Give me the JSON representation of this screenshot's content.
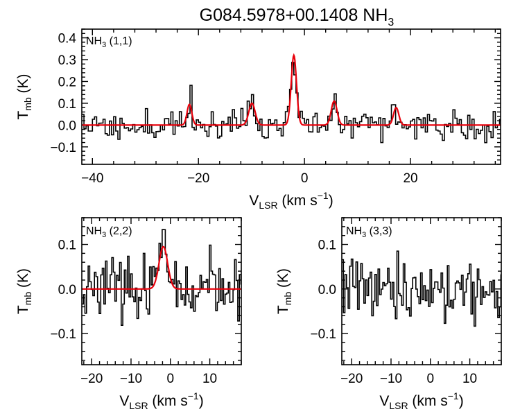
{
  "figure_title": "G084.5978+00.1408 NH",
  "figure_title_sub": "3",
  "chart_data": [
    {
      "type": "line",
      "panel": "NH3 (1,1)",
      "label_main": "NH",
      "label_sub": "3",
      "label_tail": " (1,1)",
      "xlabel_main": "V",
      "xlabel_sub": "LSR",
      "xlabel_tail": " (km s",
      "xlabel_sup": "−1",
      "xlabel_close": ")",
      "ylabel_main": "T",
      "ylabel_sub": "mb",
      "ylabel_tail": " (K)",
      "xlim": [
        -42,
        37
      ],
      "ylim": [
        -0.18,
        0.44
      ],
      "xticks": [
        -40,
        -20,
        0,
        20
      ],
      "xtick_labels": [
        "−40",
        "−20",
        "0",
        "20"
      ],
      "yticks": [
        -0.1,
        0.0,
        0.1,
        0.2,
        0.3,
        0.4
      ],
      "ytick_labels": [
        "−0.1",
        "0.0",
        "0.1",
        "0.2",
        "0.3",
        "0.4"
      ],
      "channel_width": 0.4,
      "noise_rms": 0.038,
      "seed": 11,
      "model_components": [
        {
          "center": -21.7,
          "amplitude": 0.095,
          "sigma": 0.45
        },
        {
          "center": -9.9,
          "amplitude": 0.1,
          "sigma": 0.6
        },
        {
          "center": -2.0,
          "amplitude": 0.32,
          "sigma": 0.5
        },
        {
          "center": 5.6,
          "amplitude": 0.11,
          "sigma": 0.55
        },
        {
          "center": 17.3,
          "amplitude": 0.08,
          "sigma": 0.5
        }
      ]
    },
    {
      "type": "line",
      "panel": "NH3 (2,2)",
      "label_main": "NH",
      "label_sub": "3",
      "label_tail": " (2,2)",
      "xlabel_main": "V",
      "xlabel_sub": "LSR",
      "xlabel_tail": " (km s",
      "xlabel_sup": "−1",
      "xlabel_close": ")",
      "ylabel_main": "T",
      "ylabel_sub": "mb",
      "ylabel_tail": " (K)",
      "xlim": [
        -22.5,
        18
      ],
      "ylim": [
        -0.17,
        0.16
      ],
      "xticks": [
        -20,
        -10,
        0,
        10
      ],
      "xtick_labels": [
        "−20",
        "−10",
        "0",
        "10"
      ],
      "yticks": [
        -0.1,
        0.0,
        0.1
      ],
      "ytick_labels": [
        "−0.1",
        "0.0",
        "0.1"
      ],
      "channel_width": 0.4,
      "noise_rms": 0.032,
      "seed": 23,
      "model_components": [
        {
          "center": -1.8,
          "amplitude": 0.095,
          "sigma": 1.1
        }
      ]
    },
    {
      "type": "line",
      "panel": "NH3 (3,3)",
      "label_main": "NH",
      "label_sub": "3",
      "label_tail": " (3,3)",
      "xlabel_main": "V",
      "xlabel_sub": "LSR",
      "xlabel_tail": " (km s",
      "xlabel_sup": "−1",
      "xlabel_close": ")",
      "ylabel_main": "T",
      "ylabel_sub": "mb",
      "ylabel_tail": " (K)",
      "xlim": [
        -22.5,
        18
      ],
      "ylim": [
        -0.17,
        0.16
      ],
      "xticks": [
        -20,
        -10,
        0,
        10
      ],
      "xtick_labels": [
        "−20",
        "−10",
        "0",
        "10"
      ],
      "yticks": [
        -0.1,
        0.0,
        0.1
      ],
      "ytick_labels": [
        "−0.1",
        "0.0",
        "0.1"
      ],
      "channel_width": 0.4,
      "noise_rms": 0.035,
      "seed": 37,
      "model_components": []
    }
  ]
}
